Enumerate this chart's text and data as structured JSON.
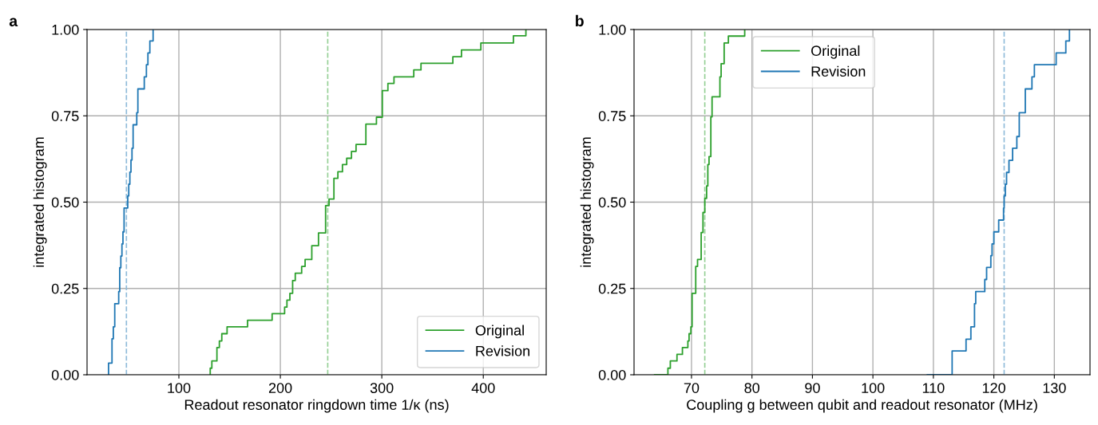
{
  "chart_data": [
    {
      "type": "step",
      "xlabel": "Readout resonator ringdown time 1/κ (ns)",
      "ylabel": "integrated histogram",
      "annotations": [
        "a"
      ],
      "xlim": [
        9.5,
        462
      ],
      "xticks": [
        100,
        200,
        300,
        400
      ],
      "ylim": [
        0,
        1
      ],
      "yticks": [
        {
          "value": 0,
          "label": "0.00"
        },
        {
          "value": 0.25,
          "label": "0.25"
        },
        {
          "value": 0.5,
          "label": "0.50"
        },
        {
          "value": 0.75,
          "label": "0.75"
        },
        {
          "value": 1,
          "label": "1.00"
        }
      ],
      "grid": true,
      "legend": "bottom right",
      "line_style": "solid",
      "series": [
        {
          "name": "Original",
          "color": "#2ca02c",
          "x": [
            130.9,
            130.9,
            132.5,
            137.5,
            139.9,
            142.3,
            147.5,
            167.7,
            191.9,
            204.2,
            206.5,
            209.4,
            212.1,
            214.7,
            221,
            224.4,
            231,
            237.6,
            244.6,
            248,
            252.8,
            256.7,
            261.2,
            265.4,
            270.1,
            274.6,
            284.3,
            294.7,
            300.5,
            306,
            312,
            331.5,
            338.6,
            370,
            378.5,
            397.6,
            429.7,
            442
          ],
          "values": [
            0,
            0.019,
            0.04,
            0.079,
            0.098,
            0.119,
            0.139,
            0.158,
            0.177,
            0.196,
            0.216,
            0.236,
            0.273,
            0.294,
            0.314,
            0.334,
            0.374,
            0.411,
            0.49,
            0.509,
            0.569,
            0.588,
            0.609,
            0.627,
            0.647,
            0.667,
            0.726,
            0.746,
            0.823,
            0.844,
            0.863,
            0.883,
            0.902,
            0.921,
            0.941,
            0.961,
            0.982,
            1.0
          ]
        },
        {
          "name": "Revision",
          "color": "#1f77b4",
          "x": [
            30.7,
            30.7,
            34.1,
            35.4,
            36.8,
            40.7,
            41.7,
            42.8,
            43.9,
            44.9,
            46,
            49.6,
            50.6,
            51.7,
            52.8,
            53.8,
            54.9,
            58.5,
            59.6,
            65.9,
            68,
            69.5,
            71.4,
            74.6
          ],
          "values": [
            0,
            0.034,
            0.104,
            0.139,
            0.206,
            0.241,
            0.31,
            0.344,
            0.379,
            0.414,
            0.483,
            0.518,
            0.552,
            0.587,
            0.622,
            0.656,
            0.724,
            0.759,
            0.828,
            0.863,
            0.898,
            0.932,
            0.967,
            1.0
          ]
        }
      ],
      "ref_lines": [
        {
          "axis": "x",
          "value": 246.7,
          "color": "#95cf95",
          "line_style": "dashed"
        },
        {
          "axis": "x",
          "value": 48.3,
          "color": "#8fbbd9",
          "line_style": "dashed"
        }
      ]
    },
    {
      "type": "step",
      "xlabel": "Coupling g between qubit and readout resonator (MHz)",
      "ylabel": "integrated histogram",
      "annotations": [
        "b"
      ],
      "xlim": [
        60.5,
        135.9
      ],
      "xticks": [
        70,
        80,
        90,
        100,
        110,
        120,
        130
      ],
      "ylim": [
        0,
        1
      ],
      "yticks": [
        {
          "value": 0,
          "label": "0.00"
        },
        {
          "value": 0.25,
          "label": "0.25"
        },
        {
          "value": 0.5,
          "label": "0.50"
        },
        {
          "value": 0.75,
          "label": "0.75"
        },
        {
          "value": 1,
          "label": "1.00"
        }
      ],
      "grid": true,
      "legend": "top left",
      "line_style": "solid",
      "series": [
        {
          "name": "Original",
          "color": "#2ca02c",
          "x": [
            63.9,
            66.1,
            66.5,
            67.6,
            68.5,
            69.4,
            69.6,
            69.9,
            70.1,
            70.7,
            71.0,
            71.6,
            71.9,
            72.2,
            72.5,
            72.7,
            72.9,
            73.2,
            73.4,
            74.7,
            74.9,
            75.4,
            76.1,
            78.8
          ],
          "values": [
            0,
            0.019,
            0.04,
            0.059,
            0.079,
            0.098,
            0.119,
            0.139,
            0.236,
            0.314,
            0.334,
            0.412,
            0.47,
            0.511,
            0.547,
            0.609,
            0.632,
            0.747,
            0.805,
            0.863,
            0.901,
            0.961,
            0.981,
            1.0
          ]
        },
        {
          "name": "Revision",
          "color": "#1f77b4",
          "x": [
            109,
            113.1,
            115.4,
            116.2,
            116.8,
            117.0,
            118.5,
            118.8,
            119.5,
            119.7,
            120.0,
            120.8,
            121.6,
            121.7,
            121.9,
            122.1,
            122.5,
            123.1,
            123.8,
            124.2,
            125.2,
            126.3,
            126.7,
            130.3,
            131.9,
            132.5
          ],
          "values": [
            0,
            0.069,
            0.103,
            0.139,
            0.206,
            0.241,
            0.276,
            0.311,
            0.345,
            0.379,
            0.414,
            0.448,
            0.483,
            0.518,
            0.552,
            0.586,
            0.621,
            0.656,
            0.69,
            0.759,
            0.828,
            0.863,
            0.898,
            0.932,
            0.967,
            1.0
          ]
        }
      ],
      "ref_lines": [
        {
          "axis": "x",
          "value": 72.2,
          "color": "#95cf95",
          "line_style": "dashed"
        },
        {
          "axis": "x",
          "value": 121.7,
          "color": "#8fbbd9",
          "line_style": "dashed"
        }
      ]
    }
  ]
}
